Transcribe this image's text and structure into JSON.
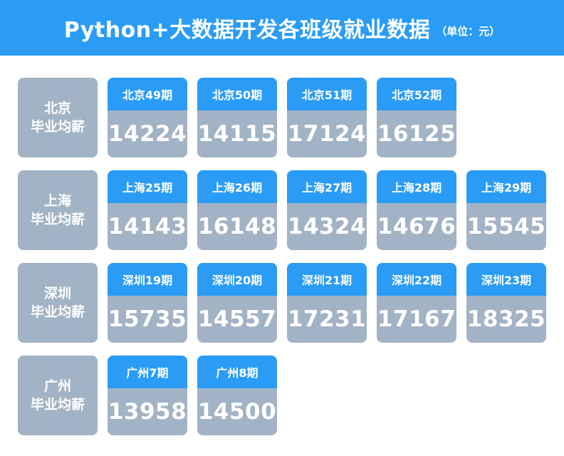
{
  "header": {
    "title": "Python+大数据开发各班级就业数据",
    "unit": "（单位：元）"
  },
  "groups": [
    {
      "city": "北京",
      "caption": "毕业均薪",
      "classes": [
        {
          "name": "北京49期",
          "salary": "14224"
        },
        {
          "name": "北京50期",
          "salary": "14115"
        },
        {
          "name": "北京51期",
          "salary": "17124"
        },
        {
          "name": "北京52期",
          "salary": "16125"
        }
      ]
    },
    {
      "city": "上海",
      "caption": "毕业均薪",
      "classes": [
        {
          "name": "上海25期",
          "salary": "14143"
        },
        {
          "name": "上海26期",
          "salary": "16148"
        },
        {
          "name": "上海27期",
          "salary": "14324"
        },
        {
          "name": "上海28期",
          "salary": "14676"
        },
        {
          "name": "上海29期",
          "salary": "15545"
        }
      ]
    },
    {
      "city": "深圳",
      "caption": "毕业均薪",
      "classes": [
        {
          "name": "深圳19期",
          "salary": "15735"
        },
        {
          "name": "深圳20期",
          "salary": "14557"
        },
        {
          "name": "深圳21期",
          "salary": "17231"
        },
        {
          "name": "深圳22期",
          "salary": "17167"
        },
        {
          "name": "深圳23期",
          "salary": "18325"
        }
      ]
    },
    {
      "city": "广州",
      "caption": "毕业均薪",
      "classes": [
        {
          "name": "广州7期",
          "salary": "13958"
        },
        {
          "name": "广州8期",
          "salary": "14500"
        }
      ]
    }
  ],
  "colors": {
    "accent": "#2a9cf6",
    "card_body": "#a2b3c5",
    "text": "#ffffff"
  }
}
